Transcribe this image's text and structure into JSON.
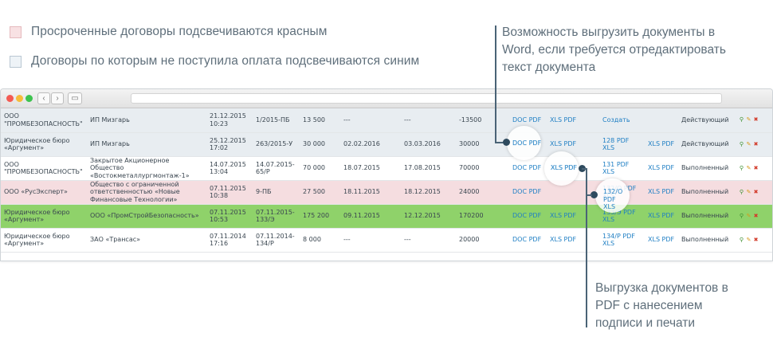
{
  "legend": [
    {
      "text": "Просроченные договоры подсвечиваются красным",
      "color": "#f8e1e3"
    },
    {
      "text": "Договоры по которым не поступила оплата подсвечиваются синим",
      "color": "#eef3f7"
    }
  ],
  "callouts": {
    "top": [
      "Возможность выгрузить документы в",
      "Word, если требуется отредактировать",
      "текст документа"
    ],
    "bottom": [
      "Выгрузка документов в",
      "PDF с нанесением",
      "подписи и печати"
    ]
  },
  "browser": {
    "back": "‹",
    "forward": "›",
    "sidebar": "▭"
  },
  "rows": [
    {
      "style": "unpaid",
      "client": "ООО \"ПРОМБЕЗОПАСНОСТЬ\"",
      "contractor": "ИП Мизгарь",
      "date": "21.12.2015 10:23",
      "number": "1/2015-ПБ",
      "sum": "13 500",
      "start": "---",
      "end": "---",
      "paid": "-13500",
      "doc": "DOC PDF",
      "xls": "XLS PDF",
      "act": "Создать",
      "actxls": "",
      "status": "Действующий"
    },
    {
      "style": "unpaid",
      "client": "Юридическое бюро «Аргумент»",
      "contractor": "ИП Мизгарь",
      "date": "25.12.2015 17:02",
      "number": "263/2015-У",
      "sum": "30 000",
      "start": "02.02.2016",
      "end": "03.03.2016",
      "paid": "30000",
      "doc": "DOC PDF",
      "xls": "XLS PDF",
      "act": "128 PDF XLS",
      "actxls": "XLS PDF",
      "status": "Действующий"
    },
    {
      "style": "plain",
      "client": "ООО \"ПРОМБЕЗОПАСНОСТЬ\"",
      "contractor": "Закрытое Акционерное Общество «Востокметаллургмонтаж-1»",
      "date": "14.07.2015 13:04",
      "number": "14.07.2015-65/Р",
      "sum": "70 000",
      "start": "18.07.2015",
      "end": "17.08.2015",
      "paid": "70000",
      "doc": "DOC PDF",
      "xls": "XLS PDF",
      "act": "131 PDF XLS",
      "actxls": "XLS PDF",
      "status": "Выполненный"
    },
    {
      "style": "overdue",
      "client": "ООО «РусЭксперт»",
      "contractor": "Общество с ограниченной ответственностью «Новые Финансовые Технологии»",
      "date": "07.11.2015 10:38",
      "number": "9-ПБ",
      "sum": "27 500",
      "start": "18.11.2015",
      "end": "18.12.2015",
      "paid": "24000",
      "doc": "DOC PDF",
      "xls": "",
      "act": "132/О PDF XLS",
      "actxls": "XLS PDF",
      "status": "Выполненный"
    },
    {
      "style": "active",
      "client": "Юридическое бюро «Аргумент»",
      "contractor": "ООО «ПромСтройБезопасность»",
      "date": "07.11.2015 10:53",
      "number": "07.11.2015-133/Э",
      "sum": "175 200",
      "start": "09.11.2015",
      "end": "12.12.2015",
      "paid": "170200",
      "doc": "DOC PDF",
      "xls": "XLS PDF",
      "act": "133/Э PDF XLS",
      "actxls": "XLS PDF",
      "status": "Выполненный"
    },
    {
      "style": "plain",
      "client": "Юридическое бюро «Аргумент»",
      "contractor": "ЗАО «Трансас»",
      "date": "07.11.2014 17:16",
      "number": "07.11.2014-134/Р",
      "sum": "8 000",
      "start": "---",
      "end": "---",
      "paid": "20000",
      "doc": "DOC PDF",
      "xls": "XLS PDF",
      "act": "134/Р PDF XLS",
      "actxls": "XLS PDF",
      "status": "Выполненный"
    }
  ],
  "icons": {
    "view": "magnifier-icon",
    "edit": "pencil-icon",
    "delete": "cross-icon"
  },
  "colors": {
    "overdue": "#f5dde0",
    "unpaid": "#e8edf1",
    "active": "#8fd26a",
    "link": "#1f7fc4",
    "callout_line": "#4a6376"
  }
}
